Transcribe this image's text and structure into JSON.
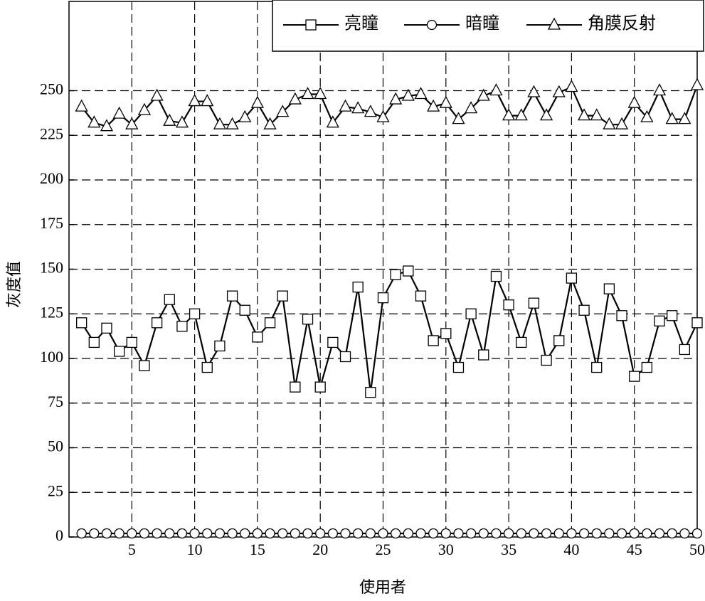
{
  "chart_data": {
    "type": "line",
    "x_label": "使用者",
    "y_label": "灰度值",
    "x": [
      1,
      2,
      3,
      4,
      5,
      6,
      7,
      8,
      9,
      10,
      11,
      12,
      13,
      14,
      15,
      16,
      17,
      18,
      19,
      20,
      21,
      22,
      23,
      24,
      25,
      26,
      27,
      28,
      29,
      30,
      31,
      32,
      33,
      34,
      35,
      36,
      37,
      38,
      39,
      40,
      41,
      42,
      43,
      44,
      45,
      46,
      47,
      48,
      49,
      50
    ],
    "series": [
      {
        "name": "亮瞳",
        "color": "#000000",
        "marker": "square",
        "values": [
          120,
          109,
          117,
          104,
          109,
          96,
          120,
          133,
          118,
          125,
          95,
          107,
          135,
          127,
          112,
          120,
          135,
          84,
          122,
          84,
          109,
          101,
          140,
          81,
          134,
          147,
          149,
          135,
          110,
          114,
          95,
          125,
          102,
          146,
          130,
          109,
          131,
          99,
          110,
          145,
          127,
          95,
          139,
          124,
          90,
          95,
          121,
          124,
          105,
          120
        ]
      },
      {
        "name": "暗瞳",
        "color": "#000000",
        "marker": "circle",
        "values": [
          2,
          2,
          2,
          2,
          2,
          2,
          2,
          2,
          2,
          2,
          2,
          2,
          2,
          2,
          2,
          2,
          2,
          2,
          2,
          2,
          2,
          2,
          2,
          2,
          2,
          2,
          2,
          2,
          2,
          2,
          2,
          2,
          2,
          2,
          2,
          2,
          2,
          2,
          2,
          2,
          2,
          2,
          2,
          2,
          2,
          2,
          2,
          2,
          2,
          2
        ]
      },
      {
        "name": "角膜反射",
        "color": "#000000",
        "marker": "triangle",
        "values": [
          241,
          232,
          230,
          237,
          231,
          239,
          247,
          233,
          232,
          244,
          244,
          231,
          231,
          235,
          243,
          231,
          238,
          245,
          248,
          248,
          232,
          241,
          240,
          238,
          235,
          245,
          247,
          248,
          241,
          243,
          234,
          240,
          247,
          250,
          236,
          236,
          249,
          236,
          249,
          252,
          236,
          236,
          231,
          231,
          243,
          235,
          250,
          234,
          234,
          253
        ]
      }
    ],
    "xlim": [
      0,
      50
    ],
    "xticks": [
      5,
      10,
      15,
      20,
      25,
      30,
      35,
      40,
      45,
      50
    ],
    "ylim": [
      0,
      300
    ],
    "yticks": [
      0,
      25,
      50,
      75,
      100,
      125,
      150,
      175,
      200,
      225,
      250
    ],
    "grid": true,
    "legend": "top-right"
  }
}
